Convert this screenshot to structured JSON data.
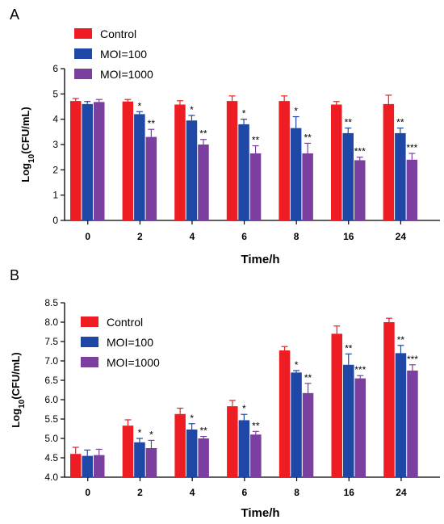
{
  "chart_data": [
    {
      "panel_label": "A",
      "type": "bar",
      "categories": [
        "0",
        "2",
        "4",
        "6",
        "8",
        "16",
        "24"
      ],
      "xlabel": "Time/h",
      "ylabel": "Log10(CFU/mL)",
      "ylim": [
        0,
        6
      ],
      "yticks": [
        "0",
        "1",
        "2",
        "3",
        "4",
        "5",
        "6"
      ],
      "legend_position": "top-left",
      "series": [
        {
          "name": "Control",
          "color": "#ee1d23",
          "values": [
            4.72,
            4.7,
            4.58,
            4.72,
            4.72,
            4.58,
            4.6
          ],
          "errors": [
            0.1,
            0.08,
            0.15,
            0.2,
            0.2,
            0.12,
            0.35
          ],
          "sig": [
            "",
            "",
            "",
            "",
            "",
            "",
            ""
          ]
        },
        {
          "name": "MOI=100",
          "color": "#1f47a6",
          "values": [
            4.6,
            4.2,
            3.95,
            3.8,
            3.65,
            3.45,
            3.45
          ],
          "errors": [
            0.1,
            0.1,
            0.2,
            0.2,
            0.45,
            0.2,
            0.2
          ],
          "sig": [
            "",
            "*",
            "*",
            "*",
            "*",
            "**",
            "**"
          ]
        },
        {
          "name": "MOI=1000",
          "color": "#7b3fa0",
          "values": [
            4.68,
            3.3,
            3.0,
            2.65,
            2.65,
            2.38,
            2.4
          ],
          "errors": [
            0.1,
            0.3,
            0.2,
            0.3,
            0.4,
            0.12,
            0.25
          ],
          "sig": [
            "",
            "**",
            "**",
            "**",
            "**",
            "***",
            "***"
          ]
        }
      ]
    },
    {
      "panel_label": "B",
      "type": "bar",
      "categories": [
        "0",
        "2",
        "4",
        "6",
        "8",
        "16",
        "24"
      ],
      "xlabel": "Time/h",
      "ylabel": "Log10(CFU/mL)",
      "ylim": [
        4.0,
        8.5
      ],
      "yticks": [
        "4.0",
        "4.5",
        "5.0",
        "5.5",
        "6.0",
        "6.5",
        "7.0",
        "7.5",
        "8.0",
        "8.5"
      ],
      "legend_position": "top-left",
      "series": [
        {
          "name": "Control",
          "color": "#ee1d23",
          "values": [
            4.6,
            5.33,
            5.63,
            5.83,
            7.27,
            7.7,
            8.0
          ],
          "errors": [
            0.17,
            0.15,
            0.15,
            0.15,
            0.1,
            0.2,
            0.1
          ],
          "sig": [
            "",
            "",
            "",
            "",
            "",
            "",
            ""
          ]
        },
        {
          "name": "MOI=100",
          "color": "#1f47a6",
          "values": [
            4.55,
            4.9,
            5.23,
            5.47,
            6.7,
            6.9,
            7.2
          ],
          "errors": [
            0.15,
            0.1,
            0.15,
            0.15,
            0.05,
            0.28,
            0.2
          ],
          "sig": [
            "",
            "*",
            "*",
            "*",
            "*",
            "**",
            "**"
          ]
        },
        {
          "name": "MOI=1000",
          "color": "#7b3fa0",
          "values": [
            4.57,
            4.75,
            5.0,
            5.1,
            6.17,
            6.55,
            6.75
          ],
          "errors": [
            0.15,
            0.2,
            0.05,
            0.08,
            0.25,
            0.07,
            0.15
          ],
          "sig": [
            "",
            "*",
            "**",
            "**",
            "**",
            "***",
            "***"
          ]
        }
      ]
    }
  ]
}
